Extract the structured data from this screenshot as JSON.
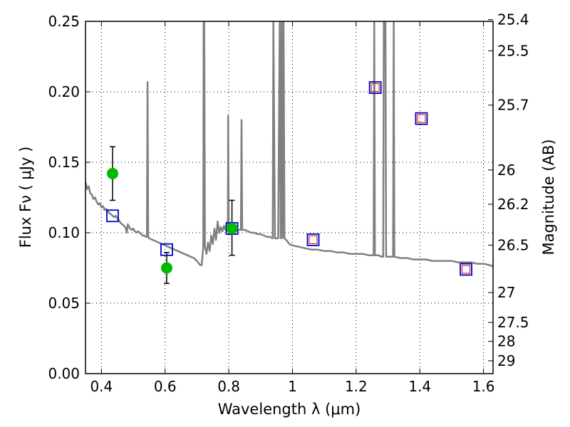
{
  "chart_data": {
    "type": "scatter",
    "xlabel": "Wavelength  λ (μm)",
    "ylabel": "Flux  Fν  ( μJy )",
    "y2label": "Magnitude (AB)",
    "xlim": [
      0.35,
      1.63
    ],
    "ylim": [
      0,
      0.25
    ],
    "grid": true,
    "x_ticks": [
      {
        "value": 0.4,
        "label": "0.4"
      },
      {
        "value": 0.6,
        "label": "0.6"
      },
      {
        "value": 0.8,
        "label": "0.8"
      },
      {
        "value": 1.0,
        "label": "1"
      },
      {
        "value": 1.2,
        "label": "1.2"
      },
      {
        "value": 1.4,
        "label": "1.4"
      },
      {
        "value": 1.6,
        "label": "1.6"
      }
    ],
    "y_ticks": [
      {
        "value": 0.0,
        "label": "0.00"
      },
      {
        "value": 0.05,
        "label": "0.05"
      },
      {
        "value": 0.1,
        "label": "0.10"
      },
      {
        "value": 0.15,
        "label": "0.15"
      },
      {
        "value": 0.2,
        "label": "0.20"
      },
      {
        "value": 0.25,
        "label": "0.25"
      }
    ],
    "y2_ticks": [
      {
        "value": 25.4,
        "label": "25.4"
      },
      {
        "value": 25.5,
        "label": "25.5"
      },
      {
        "value": 25.7,
        "label": "25.7"
      },
      {
        "value": 26.0,
        "label": "26"
      },
      {
        "value": 26.2,
        "label": "26.2"
      },
      {
        "value": 26.5,
        "label": "26.5"
      },
      {
        "value": 27.0,
        "label": "27"
      },
      {
        "value": 27.5,
        "label": "27.5"
      },
      {
        "value": 28.0,
        "label": "28"
      },
      {
        "value": 29.0,
        "label": "29"
      }
    ],
    "series": [
      {
        "kind": "spectrum",
        "color": "#808080",
        "points": [
          [
            0.35,
            0.136
          ],
          [
            0.355,
            0.131
          ],
          [
            0.36,
            0.133
          ],
          [
            0.365,
            0.128
          ],
          [
            0.37,
            0.127
          ],
          [
            0.375,
            0.124
          ],
          [
            0.38,
            0.125
          ],
          [
            0.385,
            0.122
          ],
          [
            0.39,
            0.12
          ],
          [
            0.395,
            0.121
          ],
          [
            0.4,
            0.118
          ],
          [
            0.405,
            0.119
          ],
          [
            0.41,
            0.116
          ],
          [
            0.415,
            0.117
          ],
          [
            0.42,
            0.115
          ],
          [
            0.425,
            0.114
          ],
          [
            0.43,
            0.113
          ],
          [
            0.435,
            0.112
          ],
          [
            0.44,
            0.111
          ],
          [
            0.445,
            0.112
          ],
          [
            0.45,
            0.11
          ],
          [
            0.455,
            0.109
          ],
          [
            0.46,
            0.107
          ],
          [
            0.465,
            0.106
          ],
          [
            0.47,
            0.105
          ],
          [
            0.475,
            0.104
          ],
          [
            0.48,
            0.1
          ],
          [
            0.483,
            0.106
          ],
          [
            0.49,
            0.103
          ],
          [
            0.495,
            0.102
          ],
          [
            0.5,
            0.103
          ],
          [
            0.505,
            0.101
          ],
          [
            0.51,
            0.1
          ],
          [
            0.515,
            0.101
          ],
          [
            0.52,
            0.1
          ],
          [
            0.525,
            0.099
          ],
          [
            0.53,
            0.098
          ],
          [
            0.535,
            0.098
          ],
          [
            0.54,
            0.097
          ],
          [
            0.543,
            0.097
          ],
          [
            0.545,
            0.207
          ],
          [
            0.547,
            0.097
          ],
          [
            0.55,
            0.096
          ],
          [
            0.56,
            0.095
          ],
          [
            0.57,
            0.094
          ],
          [
            0.58,
            0.093
          ],
          [
            0.59,
            0.092
          ],
          [
            0.6,
            0.091
          ],
          [
            0.61,
            0.09
          ],
          [
            0.62,
            0.089
          ],
          [
            0.63,
            0.088
          ],
          [
            0.64,
            0.087
          ],
          [
            0.65,
            0.086
          ],
          [
            0.66,
            0.085
          ],
          [
            0.67,
            0.084
          ],
          [
            0.68,
            0.083
          ],
          [
            0.69,
            0.082
          ],
          [
            0.7,
            0.08
          ],
          [
            0.71,
            0.077
          ],
          [
            0.715,
            0.077
          ],
          [
            0.72,
            0.09
          ],
          [
            0.721,
            0.25
          ],
          [
            0.723,
            0.25
          ],
          [
            0.725,
            0.09
          ],
          [
            0.73,
            0.085
          ],
          [
            0.735,
            0.093
          ],
          [
            0.74,
            0.087
          ],
          [
            0.745,
            0.098
          ],
          [
            0.75,
            0.092
          ],
          [
            0.755,
            0.103
          ],
          [
            0.76,
            0.095
          ],
          [
            0.765,
            0.108
          ],
          [
            0.77,
            0.1
          ],
          [
            0.775,
            0.104
          ],
          [
            0.78,
            0.101
          ],
          [
            0.785,
            0.105
          ],
          [
            0.79,
            0.102
          ],
          [
            0.795,
            0.104
          ],
          [
            0.797,
            0.102
          ],
          [
            0.798,
            0.183
          ],
          [
            0.8,
            0.102
          ],
          [
            0.805,
            0.104
          ],
          [
            0.81,
            0.103
          ],
          [
            0.815,
            0.104
          ],
          [
            0.82,
            0.103
          ],
          [
            0.83,
            0.102
          ],
          [
            0.838,
            0.102
          ],
          [
            0.84,
            0.18
          ],
          [
            0.842,
            0.102
          ],
          [
            0.85,
            0.102
          ],
          [
            0.86,
            0.101
          ],
          [
            0.87,
            0.1
          ],
          [
            0.88,
            0.1
          ],
          [
            0.89,
            0.099
          ],
          [
            0.9,
            0.099
          ],
          [
            0.91,
            0.098
          ],
          [
            0.92,
            0.097
          ],
          [
            0.93,
            0.097
          ],
          [
            0.938,
            0.096
          ],
          [
            0.94,
            0.25
          ],
          [
            0.945,
            0.096
          ],
          [
            0.955,
            0.096
          ],
          [
            0.96,
            0.25
          ],
          [
            0.963,
            0.096
          ],
          [
            0.966,
            0.25
          ],
          [
            0.969,
            0.096
          ],
          [
            0.972,
            0.25
          ],
          [
            0.975,
            0.096
          ],
          [
            0.98,
            0.095
          ],
          [
            0.99,
            0.092
          ],
          [
            1.0,
            0.091
          ],
          [
            1.02,
            0.09
          ],
          [
            1.04,
            0.089
          ],
          [
            1.06,
            0.088
          ],
          [
            1.08,
            0.088
          ],
          [
            1.1,
            0.087
          ],
          [
            1.12,
            0.087
          ],
          [
            1.14,
            0.086
          ],
          [
            1.16,
            0.086
          ],
          [
            1.18,
            0.085
          ],
          [
            1.2,
            0.085
          ],
          [
            1.22,
            0.085
          ],
          [
            1.24,
            0.084
          ],
          [
            1.255,
            0.084
          ],
          [
            1.257,
            0.25
          ],
          [
            1.259,
            0.084
          ],
          [
            1.26,
            0.084
          ],
          [
            1.27,
            0.084
          ],
          [
            1.28,
            0.083
          ],
          [
            1.285,
            0.083
          ],
          [
            1.287,
            0.25
          ],
          [
            1.292,
            0.25
          ],
          [
            1.294,
            0.083
          ],
          [
            1.3,
            0.083
          ],
          [
            1.31,
            0.083
          ],
          [
            1.316,
            0.083
          ],
          [
            1.318,
            0.25
          ],
          [
            1.32,
            0.083
          ],
          [
            1.34,
            0.082
          ],
          [
            1.36,
            0.082
          ],
          [
            1.38,
            0.081
          ],
          [
            1.4,
            0.081
          ],
          [
            1.42,
            0.081
          ],
          [
            1.44,
            0.08
          ],
          [
            1.46,
            0.08
          ],
          [
            1.48,
            0.08
          ],
          [
            1.5,
            0.08
          ],
          [
            1.52,
            0.079
          ],
          [
            1.54,
            0.079
          ],
          [
            1.56,
            0.079
          ],
          [
            1.58,
            0.078
          ],
          [
            1.6,
            0.078
          ],
          [
            1.62,
            0.077
          ],
          [
            1.63,
            0.076
          ]
        ]
      },
      {
        "kind": "model_photometry",
        "marker": "square",
        "color": "#0000cc",
        "points": [
          [
            0.435,
            0.112
          ],
          [
            0.605,
            0.088
          ],
          [
            0.81,
            0.103
          ],
          [
            1.065,
            0.095
          ],
          [
            1.26,
            0.203
          ],
          [
            1.405,
            0.181
          ],
          [
            1.545,
            0.074
          ]
        ]
      },
      {
        "kind": "model_photometry_inner",
        "marker": "square",
        "color": "#cc0000",
        "points": [
          [
            1.065,
            0.095
          ],
          [
            1.26,
            0.203
          ],
          [
            1.405,
            0.181
          ],
          [
            1.545,
            0.074
          ]
        ]
      },
      {
        "kind": "observed",
        "marker": "circle",
        "color": "#00bb00",
        "points": [
          {
            "x": 0.435,
            "y": 0.142,
            "ylow": 0.123,
            "yhigh": 0.161
          },
          {
            "x": 0.605,
            "y": 0.075,
            "ylow": 0.064,
            "yhigh": 0.086
          },
          {
            "x": 0.81,
            "y": 0.103,
            "ylow": 0.084,
            "yhigh": 0.123
          }
        ]
      }
    ]
  }
}
